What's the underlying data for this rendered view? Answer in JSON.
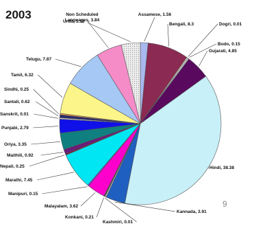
{
  "year": "2003",
  "page_number": "9",
  "chart_data": {
    "type": "pie",
    "title": "",
    "slices": [
      {
        "label": "Assamese, 1.56",
        "value": 1.56,
        "color": "#a9b8ee"
      },
      {
        "label": "Bengali, 8.3",
        "value": 8.3,
        "color": "#8b2a52"
      },
      {
        "label": "Dogri, 0.01",
        "value": 0.01,
        "color": "#f2efd2"
      },
      {
        "label": "Bodo, 0.15",
        "value": 0.15,
        "color": "#dfeaf5"
      },
      {
        "label": "Gujarati, 4.85",
        "value": 4.85,
        "color": "#5a0a5e"
      },
      {
        "label": "Hindi, 38.38",
        "value": 38.38,
        "color": "#c8f0f8"
      },
      {
        "label": "Kannada, 3.91",
        "value": 3.91,
        "color": "#1f5fbf"
      },
      {
        "label": "Kashmiri, 0.01",
        "value": 0.01,
        "color": "#c8c8c8"
      },
      {
        "label": "Konkani, 0.21",
        "value": 0.21,
        "color": "#4a4a4a"
      },
      {
        "label": "Malayalam, 3.62",
        "value": 3.62,
        "color": "#ff00cc"
      },
      {
        "label": "Manipuri, 0.15",
        "value": 0.15,
        "color": "#a020f0"
      },
      {
        "label": "Marathi, 7.45",
        "value": 7.45,
        "color": "#00e6f2"
      },
      {
        "label": "Nepali, 0.25",
        "value": 0.25,
        "color": "#7f0f2f"
      },
      {
        "label": "Maithili, 0.92",
        "value": 0.92,
        "color": "#6a1b7a"
      },
      {
        "label": "Oriya, 3.35",
        "value": 3.35,
        "color": "#0f7f7f"
      },
      {
        "label": "Punjabi, 2.79",
        "value": 2.79,
        "color": "#1010e8"
      },
      {
        "label": "Sanskrit, 0.01",
        "value": 0.01,
        "color": "#e0e0e0"
      },
      {
        "label": "Santali, 0.62",
        "value": 0.62,
        "color": "#2a2a6a"
      },
      {
        "label": "Sindhi, 0.25",
        "value": 0.25,
        "color": "#ff9f40"
      },
      {
        "label": "Tamil, 6.32",
        "value": 6.32,
        "color": "#fbf58a"
      },
      {
        "label": "Telugu, 7.87",
        "value": 7.87,
        "color": "#a6c8f5"
      },
      {
        "label": "Urdu, 5.18",
        "value": 5.18,
        "color": "#f58cc8"
      },
      {
        "label": "Non Scheduled Languages, 3.84",
        "value": 3.84,
        "color": "#e8e8e8"
      }
    ]
  }
}
